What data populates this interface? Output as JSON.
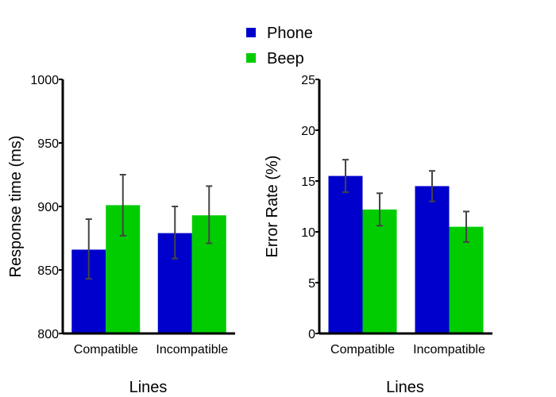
{
  "legend": {
    "items": [
      {
        "label": "Phone",
        "color": "#0000cc"
      },
      {
        "label": "Beep",
        "color": "#00cc00"
      }
    ],
    "placement": "top-center"
  },
  "chart_data": [
    {
      "type": "bar",
      "categories": [
        "Compatible",
        "Incompatible"
      ],
      "series": [
        {
          "name": "Phone",
          "color": "#0000cc",
          "values": [
            866,
            879
          ],
          "error_low": [
            843,
            859
          ],
          "error_high": [
            890,
            900
          ]
        },
        {
          "name": "Beep",
          "color": "#00cc00",
          "values": [
            901,
            893
          ],
          "error_low": [
            877,
            871
          ],
          "error_high": [
            925,
            916
          ]
        }
      ],
      "xlabel": "Lines",
      "ylabel": "Response time (ms)",
      "ylim": [
        800,
        1000
      ],
      "yticks": [
        "800",
        "850",
        "900",
        "950",
        "1000"
      ],
      "grid": false
    },
    {
      "type": "bar",
      "categories": [
        "Compatible",
        "Incompatible"
      ],
      "series": [
        {
          "name": "Phone",
          "color": "#0000cc",
          "values": [
            15.5,
            14.5
          ],
          "error_low": [
            13.9,
            13.0
          ],
          "error_high": [
            17.1,
            16.0
          ]
        },
        {
          "name": "Beep",
          "color": "#00cc00",
          "values": [
            12.2,
            10.5
          ],
          "error_low": [
            10.6,
            9.0
          ],
          "error_high": [
            13.8,
            12.0
          ]
        }
      ],
      "xlabel": "Lines",
      "ylabel": "Error Rate (%)",
      "ylim": [
        0,
        25
      ],
      "yticks": [
        "0",
        "5",
        "10",
        "15",
        "20",
        "25"
      ],
      "grid": false
    }
  ]
}
